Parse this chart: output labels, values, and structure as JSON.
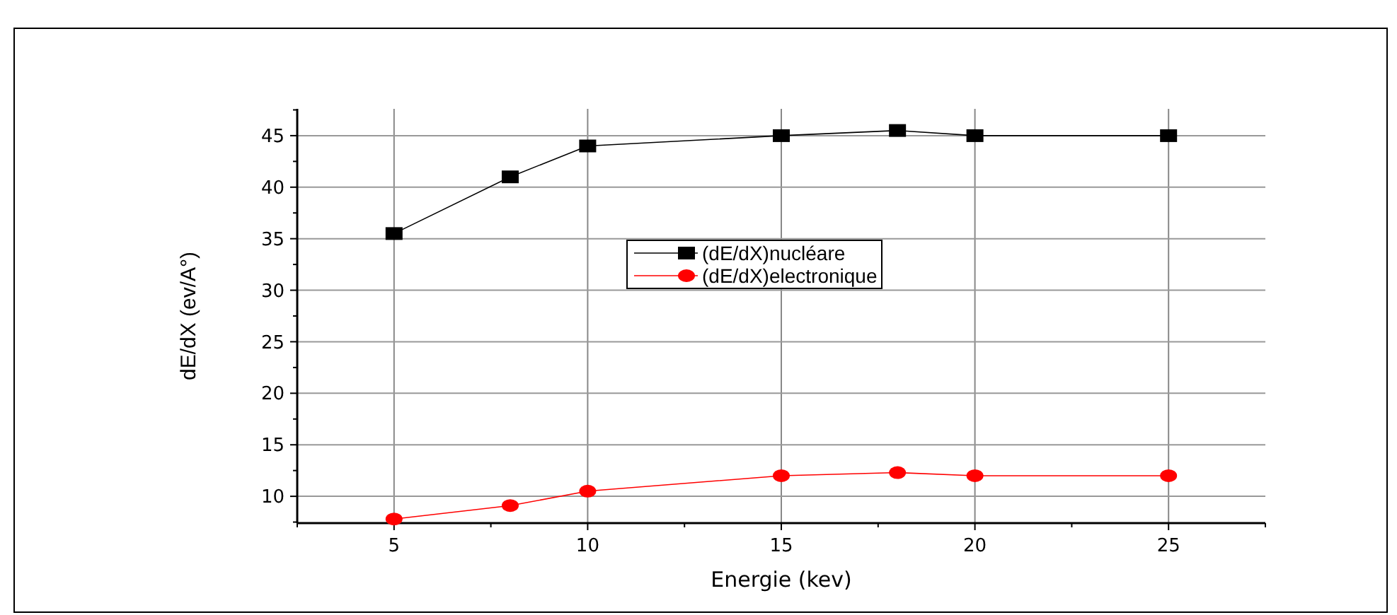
{
  "chart_data": {
    "type": "line",
    "xlabel": "Energie (kev)",
    "ylabel": "dE/dX (ev/A°)",
    "x": [
      5,
      8,
      10,
      15,
      18,
      20,
      25
    ],
    "series": [
      {
        "name": "(dE/dX)nucléare",
        "color": "#000000",
        "marker": "square",
        "values": [
          35.5,
          41,
          44,
          45,
          45.5,
          45,
          45
        ]
      },
      {
        "name": "(dE/dX)electronique",
        "color": "#ff0000",
        "marker": "circle",
        "values": [
          7.8,
          9.1,
          10.5,
          12,
          12.3,
          12,
          12
        ]
      }
    ],
    "xlim": [
      2.5,
      27.5
    ],
    "xticks": [
      {
        "value": 2.5,
        "label": null
      },
      5,
      {
        "value": 7.5,
        "label": null
      },
      10,
      {
        "value": 12.5,
        "label": null
      },
      15,
      {
        "value": 17.5,
        "label": null
      },
      20,
      {
        "value": 22.5,
        "label": null
      },
      25,
      {
        "value": 27.5,
        "label": null
      }
    ],
    "ylim": [
      7.4,
      47.6
    ],
    "yticks": [
      {
        "value": 7.5,
        "label": null
      },
      10,
      {
        "value": 12.5,
        "label": null
      },
      15,
      {
        "value": 17.5,
        "label": null
      },
      20,
      {
        "value": 22.5,
        "label": null
      },
      25,
      {
        "value": 27.5,
        "label": null
      },
      30,
      {
        "value": 32.5,
        "label": null
      },
      35,
      {
        "value": 37.5,
        "label": null
      },
      40,
      {
        "value": 42.5,
        "label": null
      },
      45,
      {
        "value": 47.5,
        "label": null
      }
    ],
    "grid": true,
    "legend": "center",
    "line_style": "solid"
  }
}
